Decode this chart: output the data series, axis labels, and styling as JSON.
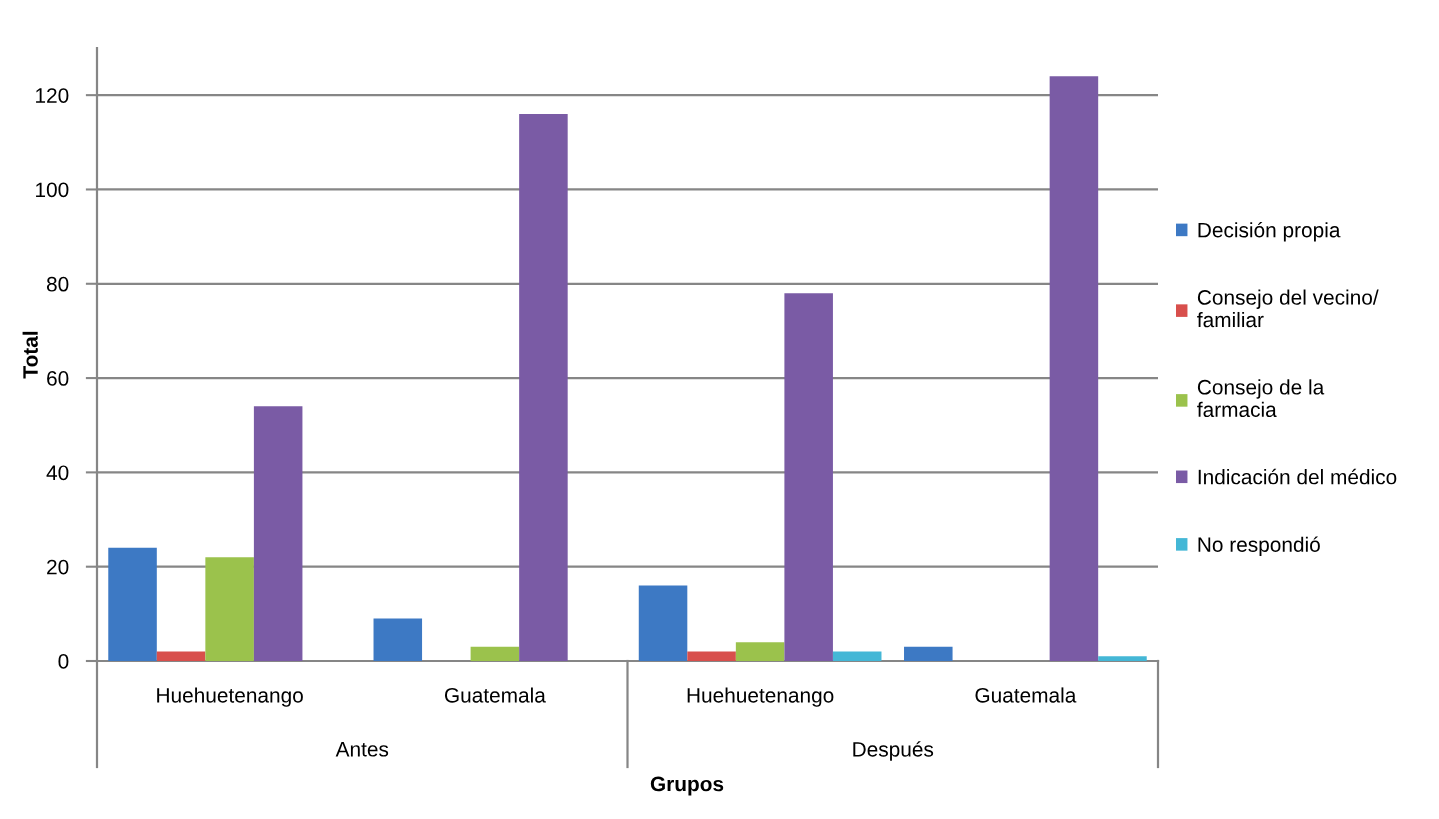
{
  "chart_data": {
    "type": "bar",
    "xlabel": "Grupos",
    "ylabel": "Total",
    "categories": [
      "Huehuetenango",
      "Guatemala",
      "Huehuetenango",
      "Guatemala"
    ],
    "annotations": [
      "Antes",
      "Después"
    ],
    "series": [
      {
        "name": "Decisión propia",
        "color": "#3d79c4",
        "values": [
          24,
          9,
          16,
          3
        ]
      },
      {
        "name": "Consejo del vecino/ familiar",
        "color": "#d84f4c",
        "values": [
          2,
          null,
          2,
          null
        ]
      },
      {
        "name": "Consejo de la farmacia",
        "color": "#9bc24c",
        "values": [
          22,
          3,
          4,
          null
        ]
      },
      {
        "name": "Indicación del médico",
        "color": "#7a5ba5",
        "values": [
          54,
          116,
          78,
          124
        ]
      },
      {
        "name": "No respondió",
        "color": "#44b7d6",
        "values": [
          null,
          null,
          2,
          1
        ]
      }
    ],
    "ylim": [
      0,
      130
    ],
    "yticks": [
      0,
      20,
      40,
      60,
      80,
      100,
      120
    ],
    "grid": "y",
    "legend": "right"
  }
}
